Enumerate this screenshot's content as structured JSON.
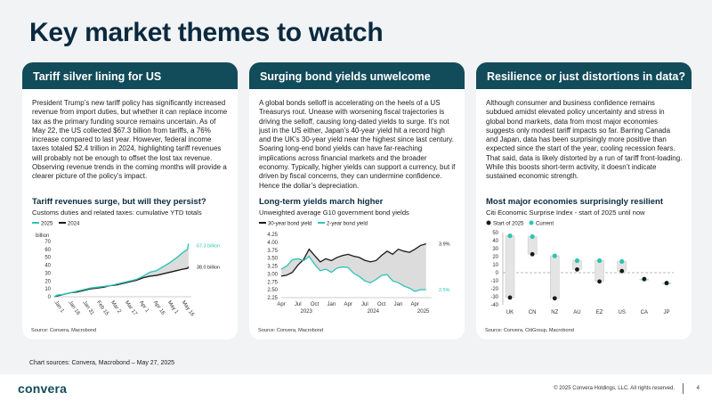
{
  "title": "Key market themes to watch",
  "footnote": "Chart sources: Convera, Macrobond – May 27, 2025",
  "footer": {
    "logo": "convera",
    "copyright": "© 2025 Convera Holdings, LLC. All rights reserved.",
    "page_number": "4"
  },
  "colors": {
    "header": "#124b5a",
    "accent_teal": "#2ec4b6",
    "dark_line": "#1a1a1a",
    "fill_gray": "#dcdcdc",
    "ci_gray": "#cfcfcf"
  },
  "panels": [
    {
      "title": "Tariff silver lining for US",
      "body": "President Trump’s new tariff policy has significantly increased revenue from import duties, but whether it can replace income tax as the primary funding source remains uncertain. As of May 22, the US collected $67.3 billion from tariffs, a 76% increase compared to last year. However, federal income taxes totaled $2.4 trillion in 2024, highlighting tariff revenues will probably not be enough to offset the lost tax revenue. Observing revenue trends in the coming months will provide a clearer picture of the policy’s impact.",
      "chart_title": "Tariff revenues surge, but will they persist?",
      "chart_subtitle": "Customs duties and related taxes: cumulative YTD totals",
      "source": "Source: Convera, Macrobond"
    },
    {
      "title": "Surging bond yields unwelcome",
      "body": "A global bonds selloff is accelerating on the heels of a US Treasurys rout. Unease with worsening fiscal trajectories is driving the selloff, causing long-dated yields to surge. It’s not just in the US either, Japan’s 40-year yield hit a record high and the UK’s 30-year yield near the highest since last century. Soaring long-end bond yields can have far-reaching implications across financial markets and the broader economy. Typically, higher yields can support a currency, but if driven by fiscal concerns, they can undermine confidence. Hence the dollar’s depreciation.",
      "chart_title": "Long-term yields march higher",
      "chart_subtitle": "Unweighted average G10 government bond yields",
      "source": "Source: Convera, Macrobond"
    },
    {
      "title": "Resilience or just distortions in data?",
      "body": "Although consumer and business confidence remains subdued amidst elevated policy uncertainty and stress in global bond markets, data from most major economies suggests only modest tariff impacts so far. Barring Canada and Japan, data has been surprisingly more positive than expected since the start of the year, cooling recession fears. That said, data is likely distorted by a run of tariff front-loading. While this boosts short-term activity, it doesn’t indicate sustained economic strength.",
      "chart_title": "Most major economies surprisingly resilient",
      "chart_subtitle": "Citi Economic Surprise Index - start of 2025 until now",
      "source": "Source: Convera, CitiGroup, Macrobond"
    }
  ],
  "chart_data": [
    {
      "type": "line",
      "unit_label": "billion",
      "ylim": [
        0,
        70
      ],
      "yticks": [
        0,
        10,
        20,
        30,
        40,
        50,
        60,
        70
      ],
      "x_ticks": [
        "Jan 1",
        "Jan 16",
        "Jan 31",
        "Feb 15",
        "Mar 2",
        "Mar 17",
        "Apr 1",
        "Apr 16",
        "May 1",
        "May 16"
      ],
      "x_domain": [
        0,
        145
      ],
      "x_tick_positions": [
        0,
        15,
        30,
        45,
        60,
        75,
        90,
        105,
        120,
        135
      ],
      "series": [
        {
          "name": "2025",
          "color": "#2ec4b6",
          "points": [
            [
              0,
              0
            ],
            [
              3,
              2
            ],
            [
              10,
              3
            ],
            [
              17,
              5
            ],
            [
              24,
              7
            ],
            [
              31,
              9
            ],
            [
              38,
              11
            ],
            [
              45,
              12
            ],
            [
              52,
              13
            ],
            [
              59,
              14
            ],
            [
              66,
              16
            ],
            [
              73,
              18
            ],
            [
              80,
              20
            ],
            [
              87,
              22
            ],
            [
              94,
              26
            ],
            [
              101,
              31
            ],
            [
              108,
              33
            ],
            [
              115,
              38
            ],
            [
              122,
              43
            ],
            [
              129,
              49
            ],
            [
              136,
              56
            ],
            [
              141,
              60
            ],
            [
              142,
              67.3
            ]
          ]
        },
        {
          "name": "2024",
          "color": "#1a1a1a",
          "points": [
            [
              0,
              0
            ],
            [
              3,
              1
            ],
            [
              10,
              3
            ],
            [
              17,
              5
            ],
            [
              24,
              6
            ],
            [
              31,
              8
            ],
            [
              38,
              10
            ],
            [
              45,
              11
            ],
            [
              52,
              12
            ],
            [
              59,
              14
            ],
            [
              66,
              15
            ],
            [
              73,
              17
            ],
            [
              80,
              19
            ],
            [
              87,
              21
            ],
            [
              94,
              24
            ],
            [
              101,
              26
            ],
            [
              108,
              27
            ],
            [
              115,
              29
            ],
            [
              122,
              31
            ],
            [
              129,
              33
            ],
            [
              136,
              35
            ],
            [
              141,
              36
            ],
            [
              142,
              38.0
            ]
          ]
        }
      ],
      "annotations": [
        "67.3 billion",
        "38.0 billion"
      ]
    },
    {
      "type": "line",
      "ylim": [
        2.25,
        4.25
      ],
      "yticks": [
        2.25,
        2.5,
        2.75,
        3.0,
        3.25,
        3.5,
        3.75,
        4.0,
        4.25
      ],
      "x_ticks": [
        "Apr",
        "Jul",
        "Oct",
        "Jan",
        "Apr",
        "Jul",
        "Oct",
        "Jan",
        "Apr"
      ],
      "x_year_labels": [
        "2023",
        "2024",
        "2025"
      ],
      "x_domain": [
        0,
        27
      ],
      "x_tick_positions": [
        0,
        3,
        6,
        9,
        12,
        15,
        18,
        21,
        24
      ],
      "x_year_positions": [
        4.5,
        16.5,
        25.5
      ],
      "series": [
        {
          "name": "30-year bond yield",
          "color": "#1a1a1a",
          "points": [
            [
              0,
              2.93
            ],
            [
              1,
              2.96
            ],
            [
              2,
              3.05
            ],
            [
              3,
              3.28
            ],
            [
              4,
              3.45
            ],
            [
              5,
              3.78
            ],
            [
              6,
              3.58
            ],
            [
              7,
              3.38
            ],
            [
              8,
              3.48
            ],
            [
              9,
              3.42
            ],
            [
              10,
              3.52
            ],
            [
              11,
              3.58
            ],
            [
              12,
              3.62
            ],
            [
              13,
              3.56
            ],
            [
              14,
              3.52
            ],
            [
              15,
              3.43
            ],
            [
              16,
              3.38
            ],
            [
              17,
              3.42
            ],
            [
              18,
              3.58
            ],
            [
              19,
              3.72
            ],
            [
              20,
              3.62
            ],
            [
              21,
              3.78
            ],
            [
              22,
              3.72
            ],
            [
              23,
              3.68
            ],
            [
              24,
              3.78
            ],
            [
              25,
              3.9
            ],
            [
              26,
              3.95
            ]
          ]
        },
        {
          "name": "2-year bond yield",
          "color": "#2ec4b6",
          "points": [
            [
              0,
              3.15
            ],
            [
              1,
              3.25
            ],
            [
              2,
              3.45
            ],
            [
              3,
              3.48
            ],
            [
              4,
              3.42
            ],
            [
              5,
              3.55
            ],
            [
              6,
              3.3
            ],
            [
              7,
              3.1
            ],
            [
              8,
              3.15
            ],
            [
              9,
              3.05
            ],
            [
              10,
              3.18
            ],
            [
              11,
              3.22
            ],
            [
              12,
              3.2
            ],
            [
              13,
              3.02
            ],
            [
              14,
              2.92
            ],
            [
              15,
              2.78
            ],
            [
              16,
              2.72
            ],
            [
              17,
              2.82
            ],
            [
              18,
              2.95
            ],
            [
              19,
              2.98
            ],
            [
              20,
              2.78
            ],
            [
              21,
              2.72
            ],
            [
              22,
              2.62
            ],
            [
              23,
              2.55
            ],
            [
              24,
              2.45
            ],
            [
              25,
              2.5
            ],
            [
              26,
              2.5
            ]
          ]
        }
      ],
      "annotations": [
        "3.9%",
        "2.5%"
      ]
    },
    {
      "type": "scatter",
      "ylim": [
        -40,
        50
      ],
      "yticks": [
        -40,
        -30,
        -20,
        -10,
        0,
        10,
        20,
        30,
        40,
        50
      ],
      "categories": [
        "UK",
        "CN",
        "NZ",
        "AU",
        "EZ",
        "US",
        "CA",
        "JP"
      ],
      "series": [
        {
          "name": "Start of 2025",
          "color": "#1a1a1a",
          "values": [
            -31,
            23,
            -32,
            4,
            -11,
            2,
            -8,
            -13
          ]
        },
        {
          "name": "Current",
          "color": "#2ec4b6",
          "values": [
            46,
            45,
            21,
            15,
            15,
            14,
            -8,
            -13
          ]
        }
      ]
    }
  ]
}
